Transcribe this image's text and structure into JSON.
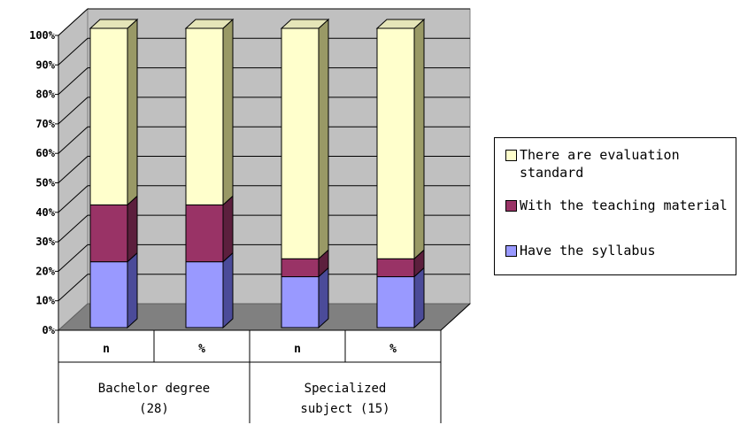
{
  "chart_data": {
    "type": "bar",
    "stacked": true,
    "percent_stacked": true,
    "three_d": true,
    "categories": [
      "n",
      "%",
      "n",
      "%"
    ],
    "groups": [
      {
        "label": "Bachelor degree (28)",
        "label_lines": [
          "Bachelor degree",
          "(28)"
        ],
        "span": 2
      },
      {
        "label": "Specialized subject (15)",
        "label_lines": [
          "Specialized",
          "subject (15)"
        ],
        "span": 2
      }
    ],
    "series": [
      {
        "name": "Have the syllabus",
        "values": [
          22,
          22,
          17,
          17
        ],
        "color": "#9999ff",
        "side": "#4b4b99",
        "top": "#b3b3ff"
      },
      {
        "name": "With the teaching material",
        "values": [
          19,
          19,
          6,
          6
        ],
        "color": "#993366",
        "side": "#5c1f3d",
        "top": "#b35c85"
      },
      {
        "name": "There are evaluation standard",
        "values": [
          59,
          59,
          77,
          77
        ],
        "color": "#ffffcc",
        "side": "#999966",
        "top": "#e5e5b8"
      }
    ],
    "y_ticks": [
      "0%",
      "10%",
      "20%",
      "30%",
      "40%",
      "50%",
      "60%",
      "70%",
      "80%",
      "90%",
      "100%"
    ],
    "ylim": [
      0,
      100
    ],
    "grid": true,
    "legend_position": "right",
    "legend_order": [
      "There are evaluation standard",
      "With the teaching material",
      "Have the syllabus"
    ]
  }
}
